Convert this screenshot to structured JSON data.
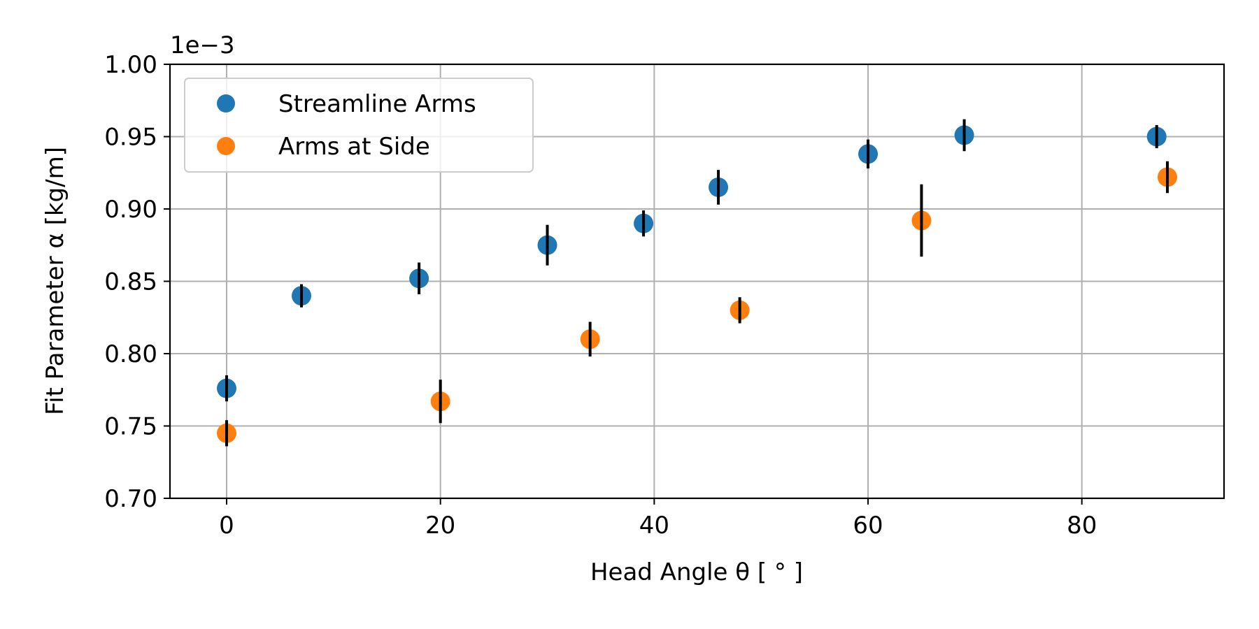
{
  "chart_data": {
    "type": "scatter",
    "xlabel": "Head Angle θ [ ° ]",
    "ylabel": "Fit Parameter α [kg/m]",
    "y_multiplier_label": "1e−3",
    "xlim": [
      -5.3,
      93.3
    ],
    "ylim": [
      0.7,
      1.0
    ],
    "x_ticks": [
      0,
      20,
      40,
      60,
      80
    ],
    "y_ticks": [
      0.7,
      0.75,
      0.8,
      0.85,
      0.9,
      0.95,
      1.0
    ],
    "x_tick_labels": [
      "0",
      "20",
      "40",
      "60",
      "80"
    ],
    "y_tick_labels": [
      "0.70",
      "0.75",
      "0.80",
      "0.85",
      "0.90",
      "0.95",
      "1.00"
    ],
    "grid": true,
    "legend_position": "top-left",
    "series": [
      {
        "name": "Streamline Arms",
        "color": "#1f77b4",
        "x": [
          0,
          7,
          18,
          30,
          39,
          46,
          60,
          69,
          87
        ],
        "y": [
          0.776,
          0.84,
          0.852,
          0.875,
          0.89,
          0.915,
          0.938,
          0.951,
          0.95
        ],
        "yerr": [
          0.009,
          0.008,
          0.011,
          0.014,
          0.009,
          0.012,
          0.01,
          0.011,
          0.008
        ]
      },
      {
        "name": "Arms at Side",
        "color": "#ff7f0e",
        "x": [
          0,
          20,
          34,
          48,
          65,
          88
        ],
        "y": [
          0.745,
          0.767,
          0.81,
          0.83,
          0.892,
          0.922
        ],
        "yerr": [
          0.009,
          0.015,
          0.012,
          0.009,
          0.025,
          0.011
        ]
      }
    ]
  }
}
